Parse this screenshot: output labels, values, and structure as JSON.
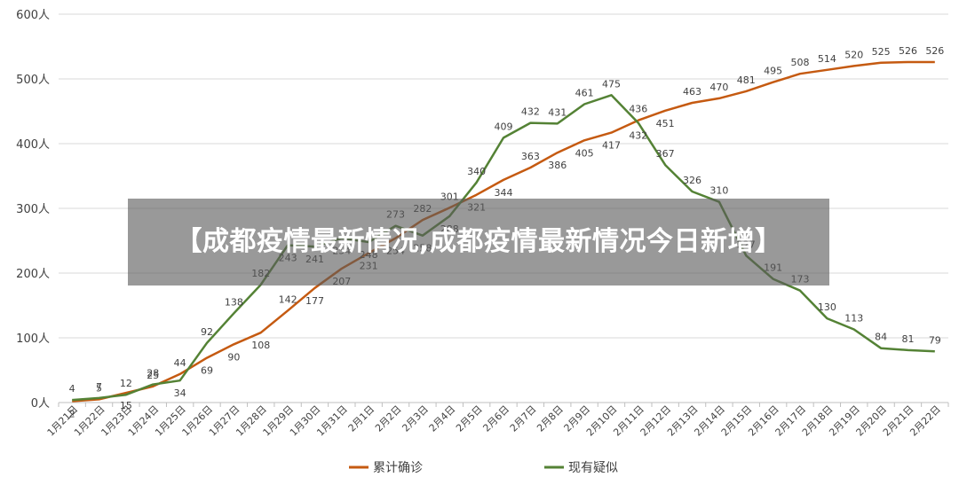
{
  "colors": {
    "confirmed": "#c55a11",
    "suspected": "#548235",
    "grid": "#d9d9d9",
    "axis": "#bfbfbf",
    "text": "#404040"
  },
  "banner": {
    "title": "【成都疫情最新情况,成都疫情最新情况今日新增】"
  },
  "chart_data": {
    "type": "line",
    "title": "",
    "xlabel": "",
    "ylabel": "",
    "ylim": [
      0,
      600
    ],
    "yticks": [
      "0人",
      "100人",
      "200人",
      "300人",
      "400人",
      "500人",
      "600人"
    ],
    "grid": true,
    "legend_position": "bottom",
    "categories": [
      "1月21日",
      "1月22日",
      "1月23日",
      "1月24日",
      "1月25日",
      "1月26日",
      "1月27日",
      "1月28日",
      "1月29日",
      "1月30日",
      "1月31日",
      "2月1日",
      "2月2日",
      "2月3日",
      "2月4日",
      "2月5日",
      "2月6日",
      "2月7日",
      "2月8日",
      "2月9日",
      "2月10日",
      "2月11日",
      "2月12日",
      "2月13日",
      "2月14日",
      "2月15日",
      "2月16日",
      "2月17日",
      "2月18日",
      "2月19日",
      "2月20日",
      "2月21日",
      "2月22日"
    ],
    "series": [
      {
        "name": "累计确诊",
        "color": "#c55a11",
        "values": [
          2,
          5,
          15,
          25,
          44,
          69,
          90,
          108,
          142,
          177,
          207,
          231,
          254,
          282,
          301,
          321,
          344,
          363,
          386,
          405,
          417,
          436,
          451,
          463,
          470,
          481,
          495,
          508,
          514,
          520,
          525,
          526,
          526
        ]
      },
      {
        "name": "现有疑似",
        "color": "#548235",
        "values": [
          4,
          7,
          12,
          28,
          34,
          92,
          138,
          182,
          243,
          241,
          254,
          248,
          273,
          258,
          288,
          340,
          409,
          432,
          431,
          461,
          475,
          432,
          367,
          326,
          310,
          227,
          191,
          173,
          130,
          113,
          84,
          81,
          79
        ]
      }
    ]
  }
}
